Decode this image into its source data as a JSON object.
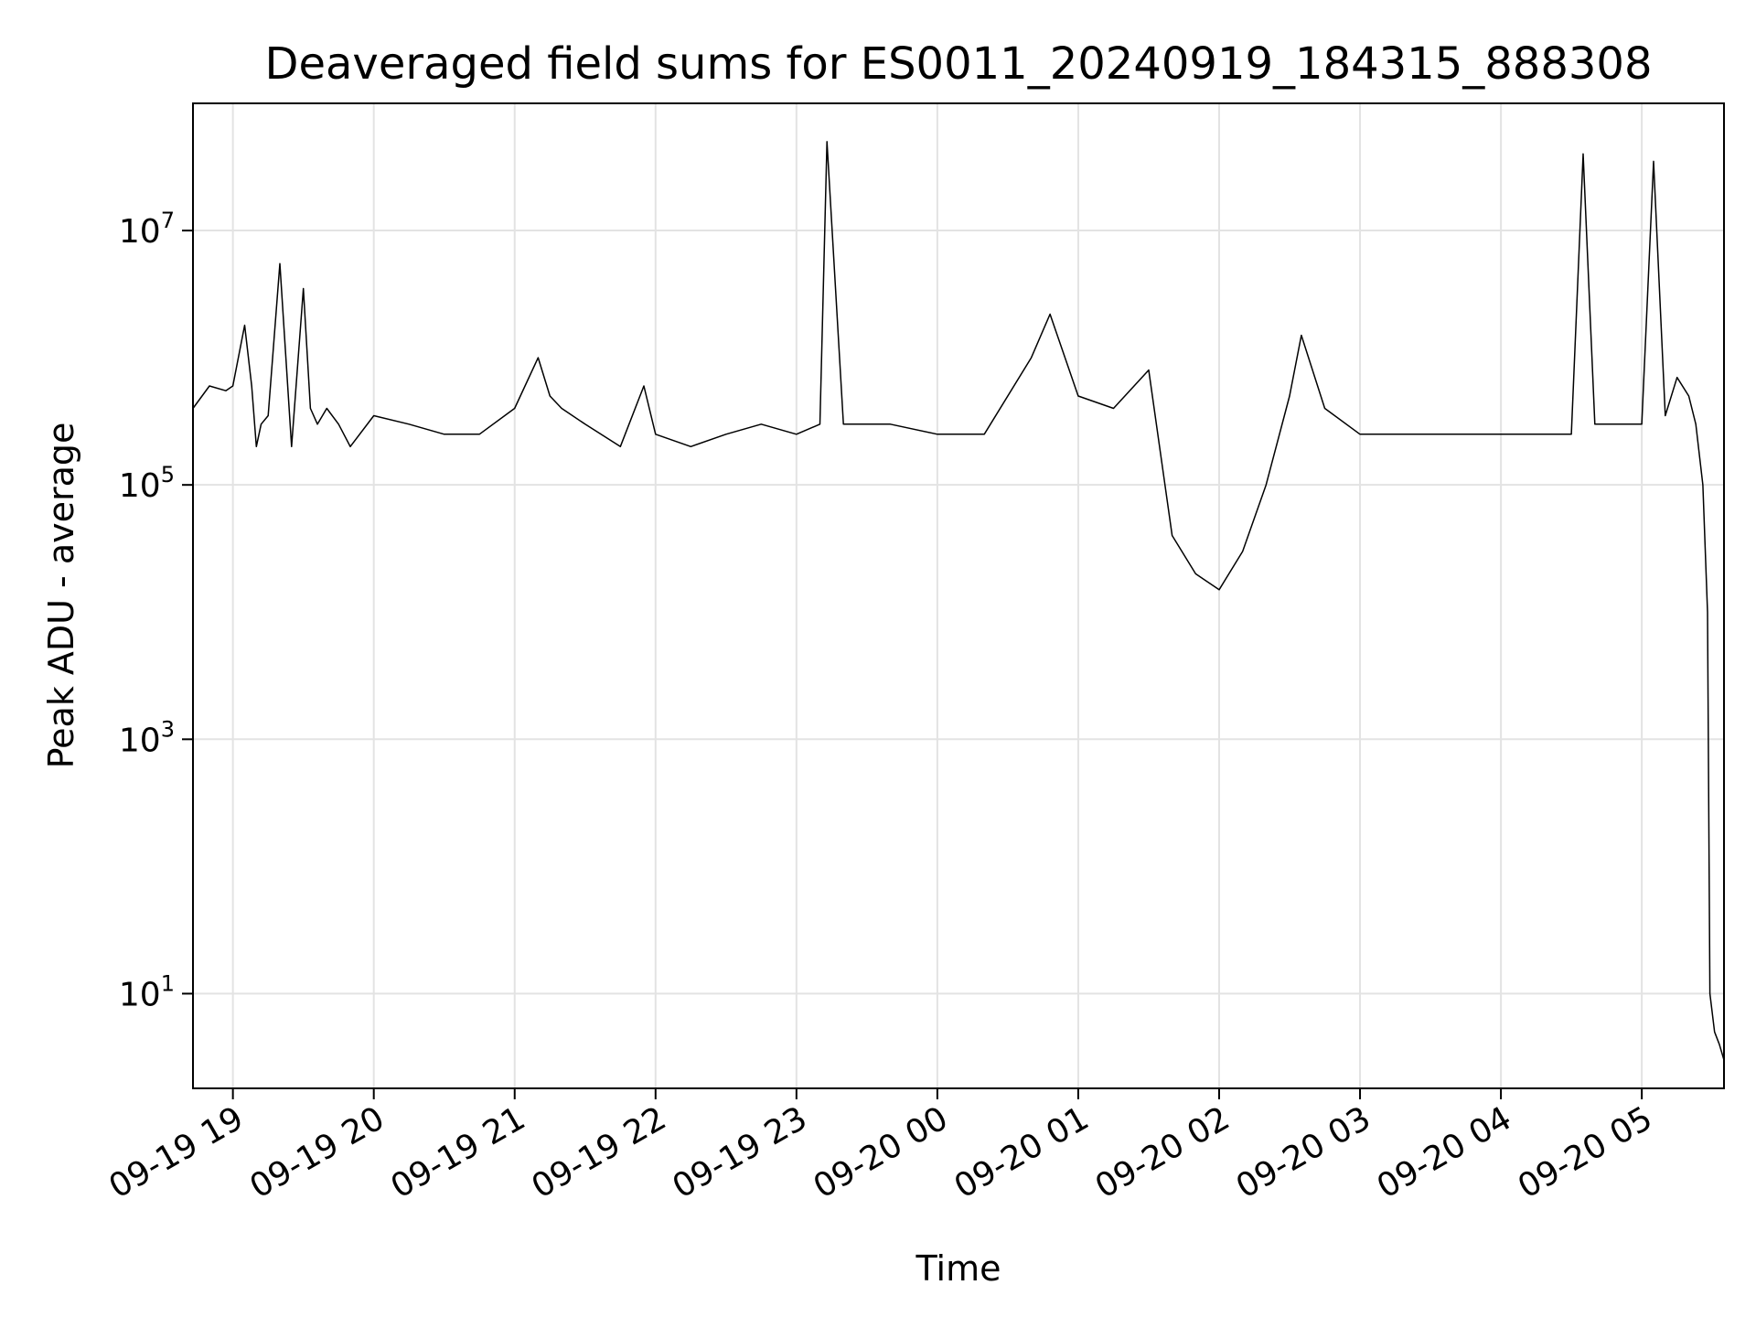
{
  "chart_data": {
    "type": "line",
    "title": "Deaveraged field sums for ES0011_20240919_184315_888308",
    "xlabel": "Time",
    "ylabel": "Peak ADU - average",
    "yscale": "log",
    "ylim": [
      1.8,
      100000000.0
    ],
    "xlim": [
      "2024-09-19 18:43",
      "2024-09-20 05:35"
    ],
    "grid": true,
    "line_color": "#000000",
    "x_ticks": [
      {
        "t": "2024-09-19 19:00",
        "label": "09-19 19"
      },
      {
        "t": "2024-09-19 20:00",
        "label": "09-19 20"
      },
      {
        "t": "2024-09-19 21:00",
        "label": "09-19 21"
      },
      {
        "t": "2024-09-19 22:00",
        "label": "09-19 22"
      },
      {
        "t": "2024-09-19 23:00",
        "label": "09-19 23"
      },
      {
        "t": "2024-09-20 00:00",
        "label": "09-20 00"
      },
      {
        "t": "2024-09-20 01:00",
        "label": "09-20 01"
      },
      {
        "t": "2024-09-20 02:00",
        "label": "09-20 02"
      },
      {
        "t": "2024-09-20 03:00",
        "label": "09-20 03"
      },
      {
        "t": "2024-09-20 04:00",
        "label": "09-20 04"
      },
      {
        "t": "2024-09-20 05:00",
        "label": "09-20 05"
      }
    ],
    "y_ticks": [
      {
        "value": 10,
        "base": "10",
        "exp": "1"
      },
      {
        "value": 1000,
        "base": "10",
        "exp": "3"
      },
      {
        "value": 100000,
        "base": "10",
        "exp": "5"
      },
      {
        "value": 10000000,
        "base": "10",
        "exp": "7"
      }
    ],
    "series": [
      {
        "x": [
          "2024-09-19 18:43",
          "2024-09-19 18:50",
          "2024-09-19 18:57",
          "2024-09-19 19:00",
          "2024-09-19 19:05",
          "2024-09-19 19:08",
          "2024-09-19 19:10",
          "2024-09-19 19:12",
          "2024-09-19 19:15",
          "2024-09-19 19:20",
          "2024-09-19 19:25",
          "2024-09-19 19:30",
          "2024-09-19 19:33",
          "2024-09-19 19:36",
          "2024-09-19 19:40",
          "2024-09-19 19:45",
          "2024-09-19 19:50",
          "2024-09-19 20:00",
          "2024-09-19 20:15",
          "2024-09-19 20:30",
          "2024-09-19 20:45",
          "2024-09-19 21:00",
          "2024-09-19 21:10",
          "2024-09-19 21:15",
          "2024-09-19 21:20",
          "2024-09-19 21:30",
          "2024-09-19 21:45",
          "2024-09-19 21:55",
          "2024-09-19 22:00",
          "2024-09-19 22:15",
          "2024-09-19 22:30",
          "2024-09-19 22:45",
          "2024-09-19 23:00",
          "2024-09-19 23:10",
          "2024-09-19 23:13",
          "2024-09-19 23:20",
          "2024-09-19 23:40",
          "2024-09-20 00:00",
          "2024-09-20 00:20",
          "2024-09-20 00:40",
          "2024-09-20 00:48",
          "2024-09-20 01:00",
          "2024-09-20 01:15",
          "2024-09-20 01:30",
          "2024-09-20 01:40",
          "2024-09-20 01:50",
          "2024-09-20 02:00",
          "2024-09-20 02:10",
          "2024-09-20 02:20",
          "2024-09-20 02:30",
          "2024-09-20 02:35",
          "2024-09-20 02:45",
          "2024-09-20 03:00",
          "2024-09-20 03:30",
          "2024-09-20 04:00",
          "2024-09-20 04:30",
          "2024-09-20 04:35",
          "2024-09-20 04:40",
          "2024-09-20 05:00",
          "2024-09-20 05:05",
          "2024-09-20 05:10",
          "2024-09-20 05:15",
          "2024-09-20 05:20",
          "2024-09-20 05:23",
          "2024-09-20 05:26",
          "2024-09-20 05:28",
          "2024-09-20 05:29",
          "2024-09-20 05:31",
          "2024-09-20 05:33",
          "2024-09-20 05:35"
        ],
        "y": [
          400000,
          600000,
          550000,
          600000,
          1800000,
          600000,
          200000,
          300000,
          350000,
          5500000,
          200000,
          3500000,
          400000,
          300000,
          400000,
          300000,
          200000,
          350000,
          300000,
          250000,
          250000,
          400000,
          1000000,
          500000,
          400000,
          300000,
          200000,
          600000,
          250000,
          200000,
          250000,
          300000,
          250000,
          300000,
          50000000,
          300000,
          300000,
          250000,
          250000,
          1000000,
          2200000,
          500000,
          400000,
          800000,
          40000,
          20000,
          15000,
          30000,
          100000,
          500000,
          1500000,
          400000,
          250000,
          250000,
          250000,
          250000,
          40000000,
          300000,
          300000,
          35000000,
          350000,
          700000,
          500000,
          300000,
          100000,
          10000,
          10,
          5,
          4,
          3
        ]
      }
    ]
  }
}
